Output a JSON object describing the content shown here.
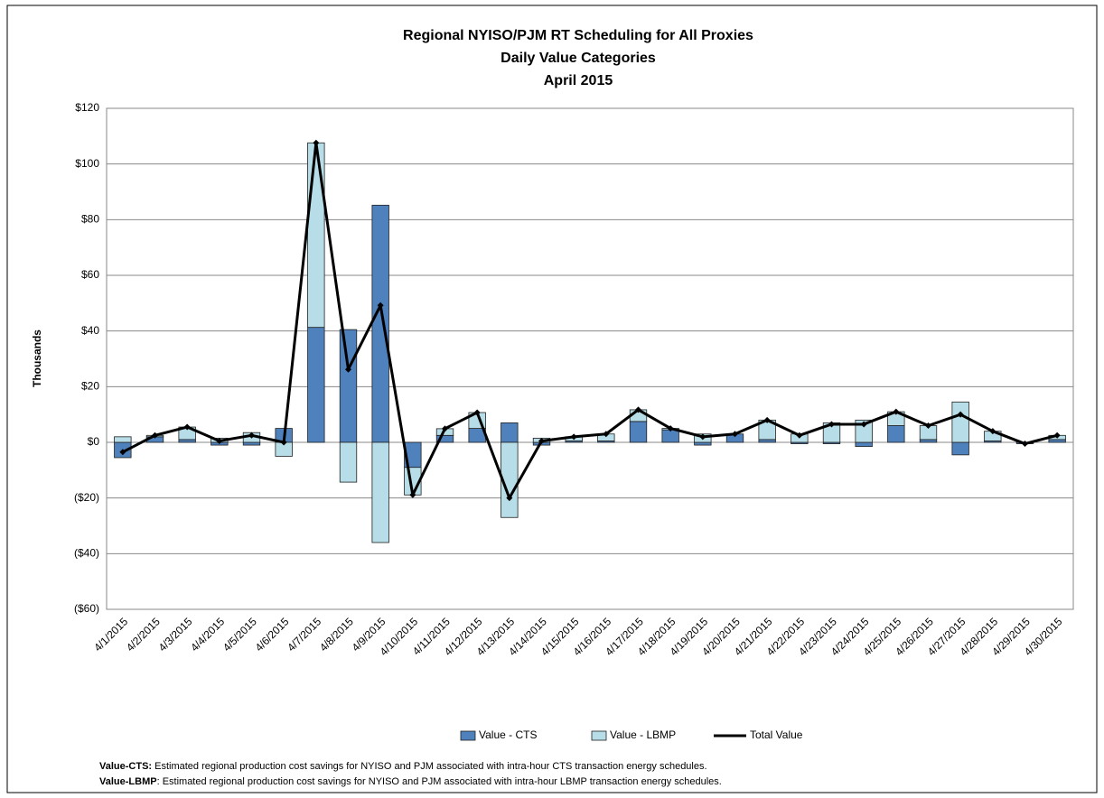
{
  "chart_data": {
    "type": "stacked-bar-line",
    "title": [
      "Regional NYISO/PJM RT Scheduling for All Proxies",
      "Daily Value Categories",
      "April 2015"
    ],
    "ylabel": "Thousands",
    "categories": [
      "4/1/2015",
      "4/2/2015",
      "4/3/2015",
      "4/4/2015",
      "4/5/2015",
      "4/6/2015",
      "4/7/2015",
      "4/8/2015",
      "4/9/2015",
      "4/10/2015",
      "4/11/2015",
      "4/12/2015",
      "4/13/2015",
      "4/14/2015",
      "4/15/2015",
      "4/16/2015",
      "4/17/2015",
      "4/18/2015",
      "4/19/2015",
      "4/20/2015",
      "4/21/2015",
      "4/22/2015",
      "4/23/2015",
      "4/24/2015",
      "4/25/2015",
      "4/26/2015",
      "4/27/2015",
      "4/28/2015",
      "4/29/2015",
      "4/30/2015"
    ],
    "series": [
      {
        "name": "Value - CTS",
        "type": "bar",
        "color": "#4f81bd",
        "values": [
          -5.5,
          2,
          1,
          -1,
          -1,
          5,
          41.3,
          40.5,
          85.2,
          -9,
          2.5,
          5,
          7,
          -1,
          0.5,
          0.5,
          7.5,
          4.5,
          -1,
          3,
          1,
          -0.5,
          -0.5,
          -1.5,
          6,
          1,
          -4.5,
          0.5,
          -0.5,
          1
        ]
      },
      {
        "name": "Value - LBMP",
        "type": "bar",
        "color": "#b7dee8",
        "values": [
          2,
          0.5,
          4.5,
          1.5,
          3.5,
          -5,
          66.3,
          -14.3,
          -36,
          -9.9,
          2.4,
          5.7,
          -27,
          1.5,
          1.5,
          2.5,
          4.2,
          0.5,
          3,
          0,
          7,
          3,
          7,
          8,
          5,
          5,
          14.5,
          3.5,
          0,
          1.5
        ]
      },
      {
        "name": "Total Value",
        "type": "line",
        "color": "#000000",
        "values": [
          -3.5,
          2.5,
          5.5,
          0.5,
          2.5,
          0,
          107.6,
          26.2,
          49.2,
          -18.9,
          4.9,
          10.7,
          -20,
          0.5,
          2,
          3,
          11.7,
          5,
          2,
          3,
          8,
          2.5,
          6.5,
          6.5,
          11,
          6,
          10,
          4,
          -0.5,
          2.5
        ]
      }
    ],
    "ylim": [
      -60,
      120
    ],
    "yticks": [
      {
        "value": -60,
        "label": "($60)"
      },
      {
        "value": -40,
        "label": "($40)"
      },
      {
        "value": -20,
        "label": "($20)"
      },
      {
        "value": 0,
        "label": "$0"
      },
      {
        "value": 20,
        "label": "$20"
      },
      {
        "value": 40,
        "label": "$40"
      },
      {
        "value": 60,
        "label": "$60"
      },
      {
        "value": 80,
        "label": "$80"
      },
      {
        "value": 100,
        "label": "$100"
      },
      {
        "value": 120,
        "label": "$120"
      }
    ],
    "negative_label_color": "#ff0000",
    "grid": true,
    "legend": "bottom",
    "notes": [
      {
        "term": "Value-CTS:",
        "text": " Estimated regional production cost savings for NYISO and PJM associated with intra-hour CTS transaction energy schedules."
      },
      {
        "term": "Value-LBMP",
        "text": ": Estimated regional production cost savings for NYISO and PJM associated with intra-hour LBMP transaction energy schedules."
      }
    ]
  }
}
